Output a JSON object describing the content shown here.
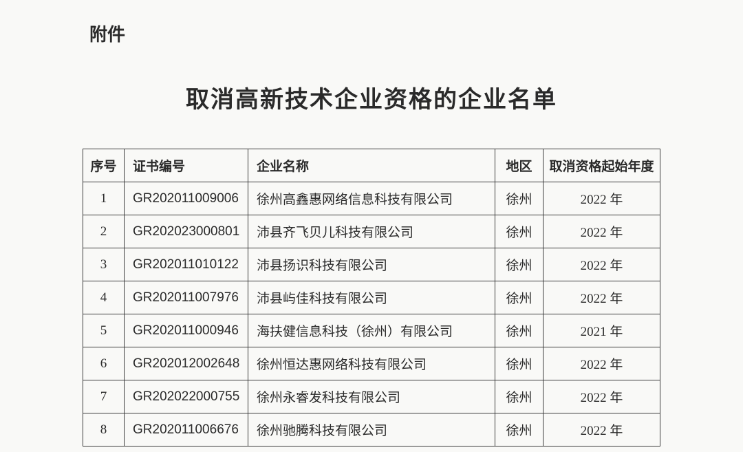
{
  "attachment_label": "附件",
  "title": "取消高新技术企业资格的企业名单",
  "table": {
    "columns": [
      "序号",
      "证书编号",
      "企业名称",
      "地区",
      "取消资格起始年度"
    ],
    "rows": [
      {
        "seq": "1",
        "cert": "GR202011009006",
        "name": "徐州高鑫惠网络信息科技有限公司",
        "region": "徐州",
        "year": "2022 年"
      },
      {
        "seq": "2",
        "cert": "GR202023000801",
        "name": "沛县齐飞贝儿科技有限公司",
        "region": "徐州",
        "year": "2022 年"
      },
      {
        "seq": "3",
        "cert": "GR202011010122",
        "name": "沛县扬识科技有限公司",
        "region": "徐州",
        "year": "2022 年"
      },
      {
        "seq": "4",
        "cert": "GR202011007976",
        "name": "沛县屿佳科技有限公司",
        "region": "徐州",
        "year": "2022 年"
      },
      {
        "seq": "5",
        "cert": "GR202011000946",
        "name": "海扶健信息科技（徐州）有限公司",
        "region": "徐州",
        "year": "2021 年"
      },
      {
        "seq": "6",
        "cert": "GR202012002648",
        "name": "徐州恒达惠网络科技有限公司",
        "region": "徐州",
        "year": "2022 年"
      },
      {
        "seq": "7",
        "cert": "GR202022000755",
        "name": "徐州永睿发科技有限公司",
        "region": "徐州",
        "year": "2022 年"
      },
      {
        "seq": "8",
        "cert": "GR202011006676",
        "name": "徐州驰腾科技有限公司",
        "region": "徐州",
        "year": "2022 年"
      }
    ]
  }
}
